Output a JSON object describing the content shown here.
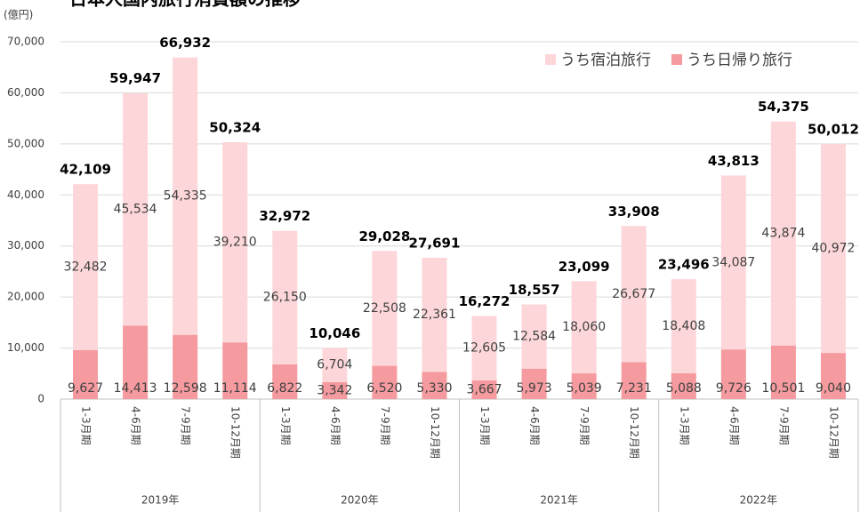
{
  "chart_data": {
    "type": "stacked_bar",
    "title": "日本人国内旅行消費額の推移",
    "y_unit": "(億円)",
    "categories": [
      "1-3月期",
      "4-6月期",
      "7-9月期",
      "10-12月期",
      "1-3月期",
      "4-6月期",
      "7-9月期",
      "10-12月期",
      "1-3月期",
      "4-6月期",
      "7-9月期",
      "10-12月期",
      "1-3月期",
      "4-6月期",
      "7-9月期",
      "10-12月期"
    ],
    "groups": [
      "2019年",
      "2020年",
      "2021年",
      "2022年"
    ],
    "series": [
      {
        "name": "うち日帰り旅行",
        "color": "#f59a9e",
        "values": [
          9627,
          14413,
          12598,
          11114,
          6822,
          3342,
          6520,
          5330,
          3667,
          5973,
          5039,
          7231,
          5088,
          9726,
          10501,
          9040
        ],
        "value_labels": [
          "9,627",
          "14,413",
          "12,598",
          "11,114",
          "6,822",
          "3,342",
          "6,520",
          "5,330",
          "3,667",
          "5,973",
          "5,039",
          "7,231",
          "5,088",
          "9,726",
          "10,501",
          "9,040"
        ]
      },
      {
        "name": "うち宿泊旅行",
        "color": "#fdd6d9",
        "values": [
          32482,
          45534,
          54335,
          39210,
          26150,
          6704,
          22508,
          22361,
          12605,
          12584,
          18060,
          26677,
          18408,
          34087,
          43874,
          40972
        ],
        "value_labels": [
          "32,482",
          "45,534",
          "54,335",
          "39,210",
          "26,150",
          "6,704",
          "22,508",
          "22,361",
          "12,605",
          "12,584",
          "18,060",
          "26,677",
          "18,408",
          "34,087",
          "43,874",
          "40,972"
        ]
      }
    ],
    "totals": {
      "values": [
        42109,
        59947,
        66932,
        50324,
        32972,
        10046,
        29028,
        27691,
        16272,
        18557,
        23099,
        33908,
        23496,
        43813,
        54375,
        50012
      ],
      "value_labels": [
        "42,109",
        "59,947",
        "66,932",
        "50,324",
        "32,972",
        "10,046",
        "29,028",
        "27,691",
        "16,272",
        "18,557",
        "23,099",
        "33,908",
        "23,496",
        "43,813",
        "54,375",
        "50,012"
      ]
    },
    "ylim": [
      0,
      70000
    ],
    "yticks": [
      0,
      {
        "value": 10000,
        "label": "10,000"
      },
      {
        "value": 20000,
        "label": "20,000"
      },
      {
        "value": 30000,
        "label": "30,000"
      },
      {
        "value": 40000,
        "label": "40,000"
      },
      {
        "value": 50000,
        "label": "50,000"
      },
      {
        "value": 60000,
        "label": "60,000"
      },
      {
        "value": 70000,
        "label": "70,000"
      }
    ],
    "grid": true,
    "legend": "top-right"
  }
}
